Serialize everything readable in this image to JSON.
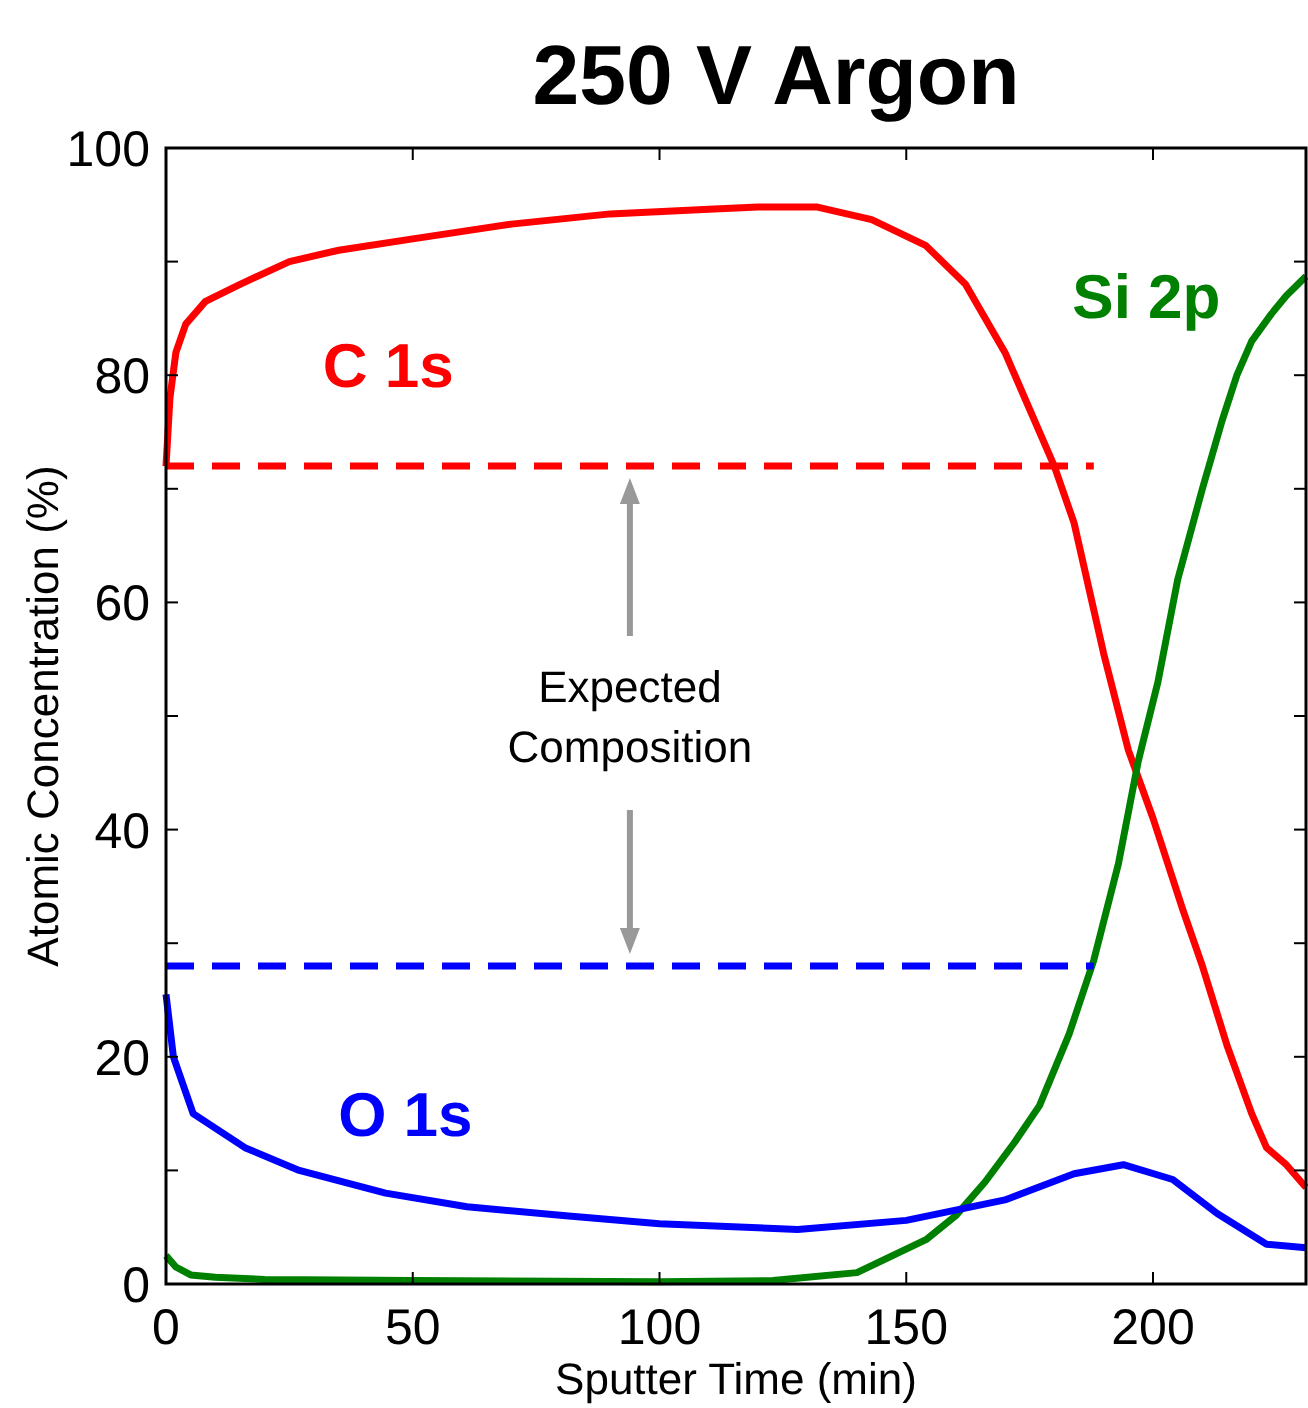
{
  "chart_data": {
    "type": "line",
    "title": "250 V Argon",
    "xlabel": "Sputter Time (min)",
    "ylabel": "Atomic Concentration (%)",
    "xlim": [
      0,
      231
    ],
    "ylim": [
      0,
      100
    ],
    "xticks": [
      0,
      50,
      100,
      150,
      200
    ],
    "yticks": [
      0,
      {
        "value": 10,
        "label": null
      },
      20,
      {
        "value": 30,
        "label": null
      },
      40,
      {
        "value": 50,
        "label": null
      },
      60,
      {
        "value": 70,
        "label": null
      },
      80,
      {
        "value": 90,
        "label": null
      },
      100
    ],
    "grid": false,
    "annotations": [
      "Expected Composition"
    ],
    "series": [
      {
        "name": "C 1s",
        "color": "#ff0000",
        "x": [
          0,
          0.8,
          2,
          4,
          8,
          15,
          25,
          35,
          50,
          70,
          90,
          110,
          120,
          132,
          143,
          154,
          162,
          170,
          176,
          180,
          184,
          190,
          195,
          200,
          206,
          210,
          215,
          220,
          223,
          227,
          231
        ],
        "values": [
          72,
          78,
          82,
          84.5,
          86.5,
          88,
          90,
          91,
          92,
          93.3,
          94.2,
          94.6,
          94.8,
          94.8,
          93.7,
          91.4,
          88,
          82,
          76,
          72,
          67,
          55.5,
          47,
          41,
          33,
          28,
          21,
          15,
          12,
          10.5,
          8.5
        ]
      },
      {
        "name": "Si 2p",
        "color": "#008000",
        "x": [
          0,
          2,
          5,
          10,
          20,
          50,
          100,
          123,
          140,
          154,
          160,
          166,
          172,
          177,
          183,
          188,
          193,
          197,
          201,
          205,
          210,
          214,
          217,
          220,
          224,
          227,
          231
        ],
        "values": [
          2.5,
          1.5,
          0.8,
          0.6,
          0.4,
          0.3,
          0.2,
          0.3,
          1,
          3.9,
          6,
          9,
          12.5,
          15.7,
          22,
          28.5,
          37,
          46,
          53,
          62,
          70,
          76,
          80,
          83,
          85.4,
          87,
          88.7
        ]
      },
      {
        "name": "O 1s",
        "color": "#0000ff",
        "x": [
          0,
          1.5,
          5.5,
          16,
          27,
          44.5,
          61,
          81,
          100,
          128,
          150,
          170,
          184,
          194,
          204,
          213,
          223,
          231
        ],
        "values": [
          25.5,
          20,
          15,
          12,
          10,
          8,
          6.8,
          6,
          5.3,
          4.8,
          5.6,
          7.4,
          9.7,
          10.5,
          9.2,
          6.2,
          3.5,
          3.2
        ]
      },
      {
        "color": "#ff0000",
        "line_style": "dashed",
        "x": [
          0,
          188
        ],
        "values": [
          72,
          72
        ]
      },
      {
        "color": "#0000ff",
        "line_style": "dashed",
        "x": [
          0,
          188
        ],
        "values": [
          28,
          28
        ]
      }
    ]
  }
}
